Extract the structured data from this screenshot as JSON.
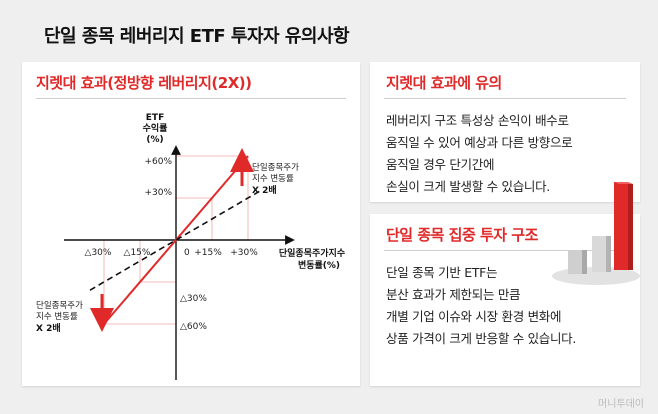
{
  "title": "단일 종목 레버리지 ETF 투자자 유의사항",
  "chart_panel": {
    "heading": "지렛대 효과(정방향 레버리지(2X))",
    "y_axis_title": [
      "ETF",
      "수익률",
      "(%)"
    ],
    "x_axis_title": [
      "단일종목주가지수",
      "변동률(%)"
    ],
    "origin_label": "0",
    "y_ticks_pos": [
      "+60%",
      "+30%"
    ],
    "x_ticks_pos": [
      "+15%",
      "+30%"
    ],
    "x_ticks_neg": [
      "△30%",
      "△15%"
    ],
    "y_ticks_neg": [
      "△30%",
      "△60%"
    ],
    "annotation_up": [
      "단일종목주가",
      "지수 변동률",
      "X 2배"
    ],
    "annotation_down": [
      "단일종목주가",
      "지수 변동률",
      "X 2배"
    ]
  },
  "chart_data": {
    "type": "line",
    "x": [
      -30,
      -15,
      0,
      15,
      30
    ],
    "series": [
      {
        "values": [
          -60,
          -30,
          0,
          30,
          60
        ]
      },
      {
        "values": [
          -30,
          -15,
          0,
          15,
          30
        ]
      }
    ],
    "xlim": [
      -30,
      30
    ],
    "ylim": [
      -60,
      60
    ]
  },
  "card1": {
    "heading": "지렛대 효과에 유의",
    "lines": [
      "레버리지 구조 특성상 손익이 배수로",
      "움직일 수 있어 예상과 다른 방향으로",
      "움직일 경우 단기간에",
      "손실이 크게 발생할 수 있습니다."
    ]
  },
  "card2": {
    "heading": "단일 종목 집중 투자 구조",
    "lines": [
      "단일 종목 기반 ETF는",
      "분산 효과가 제한되는 만큼",
      "개별 기업 이슈와 시장 환경 변화에",
      "상품 가격이 크게 반응할 수 있습니다."
    ]
  },
  "watermark": "머니투데이",
  "colors": {
    "accent": "#e02a2a",
    "guide": "#f2a6a6",
    "axis": "#111111"
  }
}
